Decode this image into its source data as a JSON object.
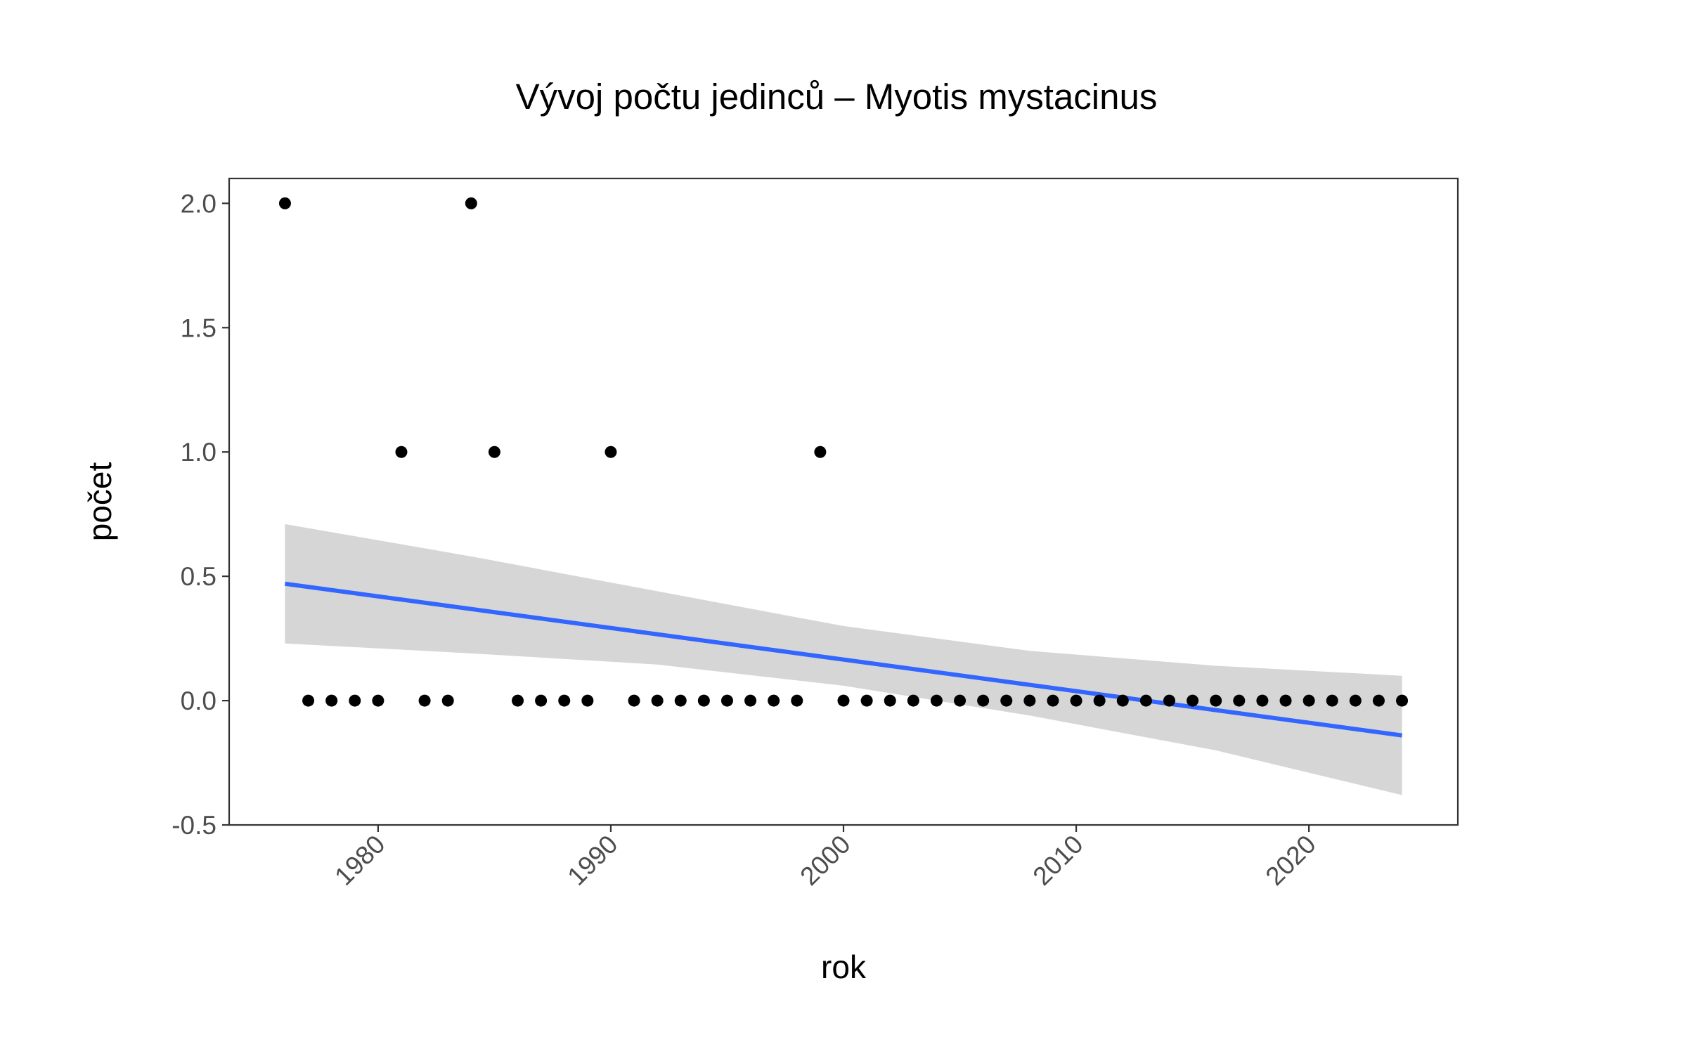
{
  "chart_data": {
    "type": "scatter",
    "title": "Vývoj počtu jedinců – Myotis mystacinus",
    "xlabel": "rok",
    "ylabel": "počet",
    "xlim": [
      1973.6,
      2026.4
    ],
    "ylim": [
      -0.5,
      2.1
    ],
    "x_ticks": [
      1980,
      1990,
      2000,
      2010,
      2020
    ],
    "x_tick_labels": [
      "1980",
      "1990",
      "2000",
      "2010",
      "2020"
    ],
    "y_ticks": [
      -0.5,
      0.0,
      0.5,
      1.0,
      1.5,
      2.0
    ],
    "y_tick_labels": [
      "-0.5",
      "0.0",
      "0.5",
      "1.0",
      "1.5",
      "2.0"
    ],
    "grid": false,
    "points": {
      "x": [
        1976,
        1977,
        1978,
        1979,
        1980,
        1981,
        1982,
        1983,
        1984,
        1985,
        1986,
        1987,
        1988,
        1989,
        1990,
        1991,
        1992,
        1993,
        1994,
        1995,
        1996,
        1997,
        1998,
        1999,
        2000,
        2001,
        2002,
        2003,
        2004,
        2005,
        2006,
        2007,
        2008,
        2009,
        2010,
        2011,
        2012,
        2013,
        2014,
        2015,
        2016,
        2017,
        2018,
        2019,
        2020,
        2021,
        2022,
        2023,
        2024
      ],
      "y": [
        2,
        0,
        0,
        0,
        0,
        1,
        0,
        0,
        2,
        1,
        0,
        0,
        0,
        0,
        1,
        0,
        0,
        0,
        0,
        0,
        0,
        0,
        0,
        1,
        0,
        0,
        0,
        0,
        0,
        0,
        0,
        0,
        0,
        0,
        0,
        0,
        0,
        0,
        0,
        0,
        0,
        0,
        0,
        0,
        0,
        0,
        0,
        0,
        0
      ]
    },
    "trend": {
      "method": "linear fit",
      "x_range": [
        1976,
        2024
      ],
      "y_at_start": 0.47,
      "y_at_end": -0.14,
      "ci_lower": [
        0.23,
        0.19,
        0.145,
        0.06,
        -0.06,
        -0.2,
        -0.38
      ],
      "ci_upper": [
        0.71,
        0.58,
        0.44,
        0.3,
        0.2,
        0.14,
        0.1
      ],
      "ci_x": [
        1976,
        1984,
        1992,
        2000,
        2008,
        2016,
        2024
      ]
    },
    "colors": {
      "point": "#000000",
      "line": "#3366ff",
      "ribbon": "#d6d6d6"
    }
  }
}
